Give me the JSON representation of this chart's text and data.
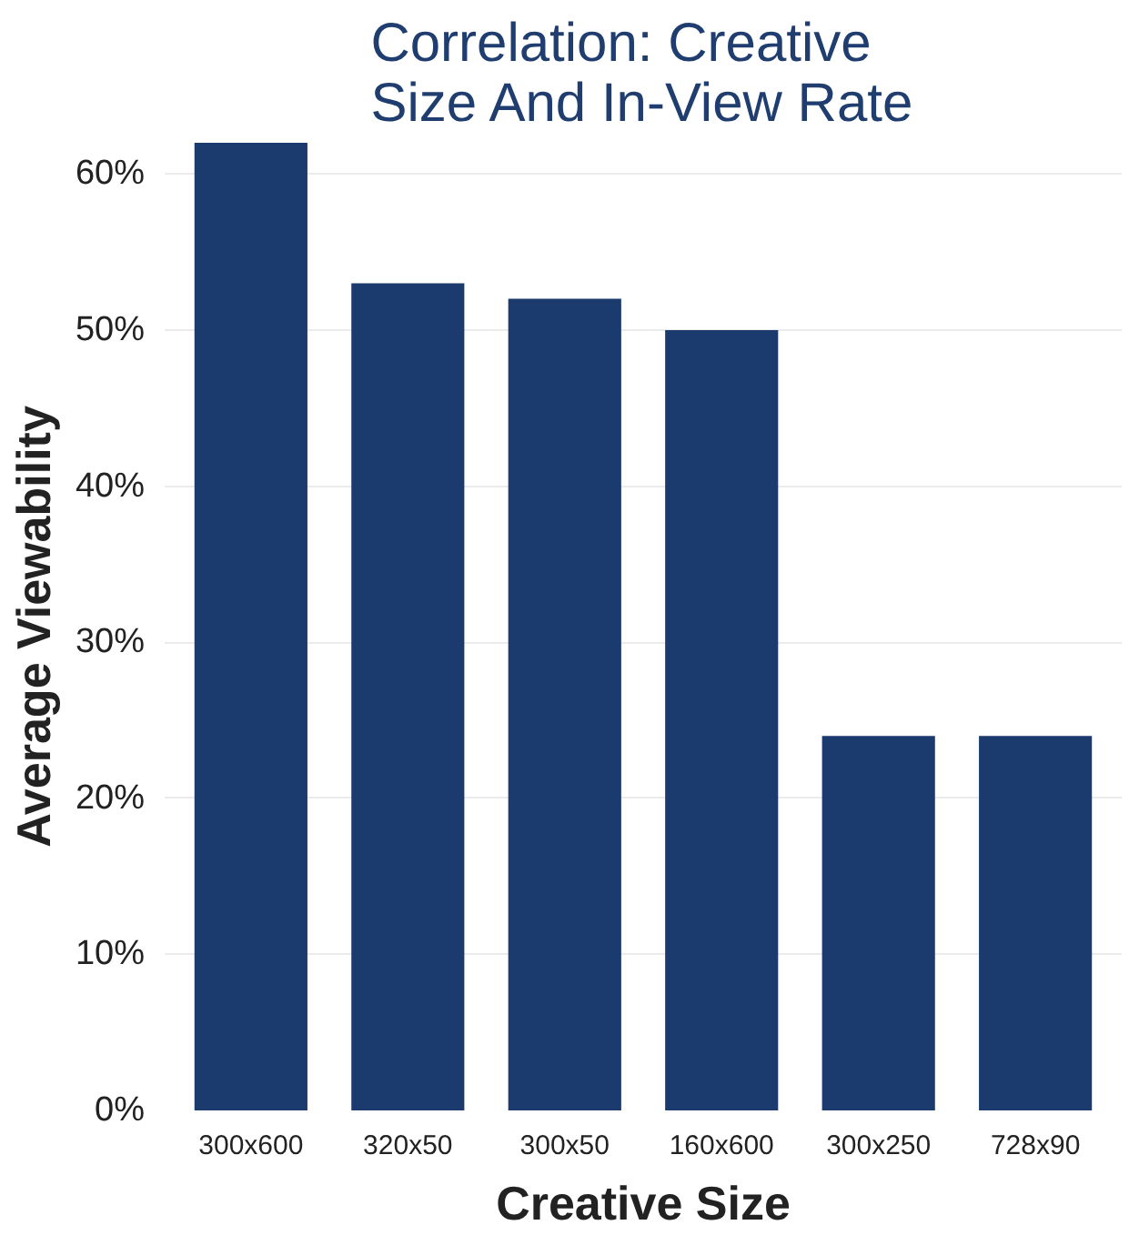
{
  "chart_data": {
    "type": "bar",
    "title": "Correlation: Creative\nSize And In-View Rate",
    "xlabel": "Creative Size",
    "ylabel": "Average Viewability",
    "categories": [
      "300x600",
      "320x50",
      "300x50",
      "160x600",
      "300x250",
      "728x90"
    ],
    "values": [
      62,
      53,
      52,
      50,
      24,
      24
    ],
    "color": "#1b3b6f",
    "yticks": [
      {
        "value": 0,
        "label": "0%"
      },
      {
        "value": 10,
        "label": "10%"
      },
      {
        "value": 20,
        "label": "20%"
      },
      {
        "value": 30,
        "label": "30%"
      },
      {
        "value": 40,
        "label": "40%"
      },
      {
        "value": 50,
        "label": "50%"
      },
      {
        "value": 60,
        "label": "60%"
      }
    ],
    "ylim": [
      0,
      62
    ],
    "grid": "y"
  }
}
